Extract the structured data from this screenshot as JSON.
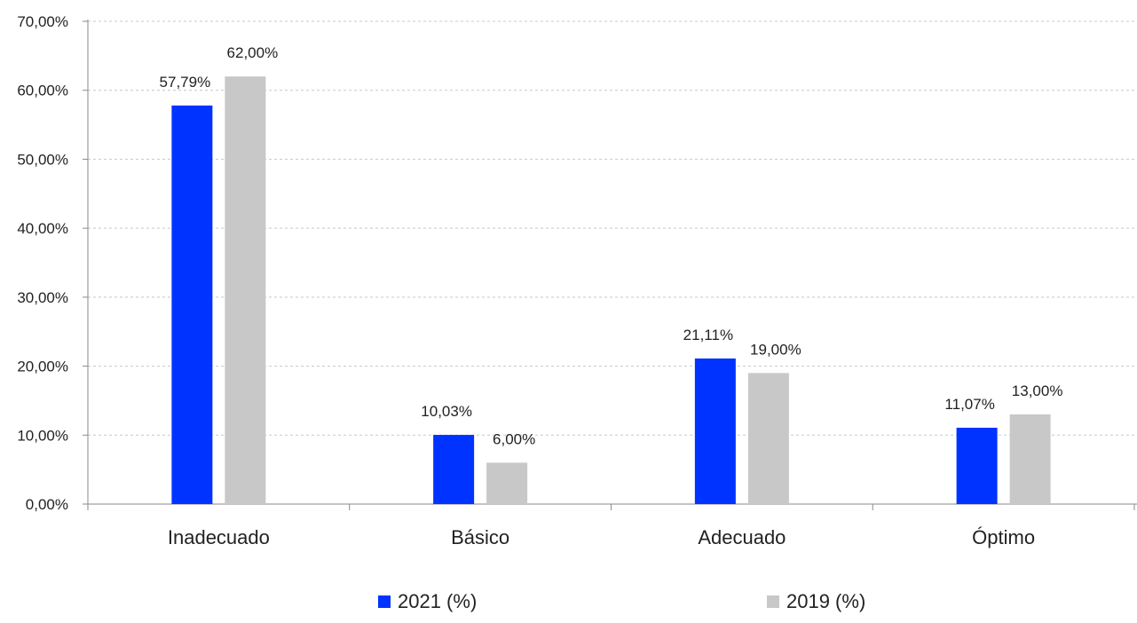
{
  "chart_data": {
    "type": "bar",
    "categories": [
      "Inadecuado",
      "Básico",
      "Adecuado",
      "Óptimo"
    ],
    "series": [
      {
        "name": "2021 (%)",
        "color": "#0033ff",
        "values": [
          57.79,
          10.03,
          21.11,
          11.07
        ],
        "labels": [
          "57,79%",
          "10,03%",
          "21,11%",
          "11,07%"
        ]
      },
      {
        "name": "2019 (%)",
        "color": "#c8c8c8",
        "values": [
          62.0,
          6.0,
          19.0,
          13.0
        ],
        "labels": [
          "62,00%",
          "6,00%",
          "19,00%",
          "13,00%"
        ]
      }
    ],
    "ylim": [
      0,
      70
    ],
    "yticks": [
      0,
      10,
      20,
      30,
      40,
      50,
      60,
      70
    ],
    "ytick_labels": [
      "0,00%",
      "10,00%",
      "20,00%",
      "30,00%",
      "40,00%",
      "50,00%",
      "60,00%",
      "70,00%"
    ],
    "grid": true,
    "grid_color": "#c8c8c8",
    "axis_color": "#8a8a8a",
    "legend_position": "bottom",
    "title": "",
    "xlabel": "",
    "ylabel": ""
  }
}
